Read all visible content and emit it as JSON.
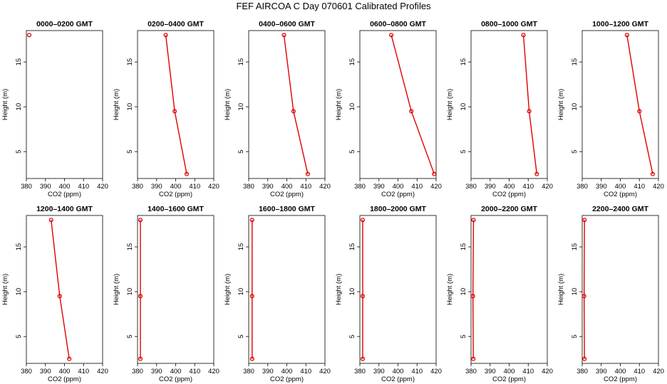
{
  "title": "FEF AIRCOA C  Day 070601  Calibrated Profiles",
  "colors": {
    "series": "#e00000",
    "axis": "#000000"
  },
  "chart_data": [
    {
      "type": "line",
      "title": "0000–0200 GMT",
      "xlabel": "CO2 (ppm)",
      "ylabel": "Height (m)",
      "xlim": [
        380,
        420
      ],
      "ylim": [
        2,
        18.5
      ],
      "xticks": [
        "380",
        "390",
        "400",
        "410",
        "420"
      ],
      "yticks": [
        "5",
        "10",
        "15"
      ],
      "x": [
        381.5
      ],
      "y": [
        18
      ]
    },
    {
      "type": "line",
      "title": "0200–0400 GMT",
      "xlabel": "CO2 (ppm)",
      "ylabel": "Height (m)",
      "xlim": [
        380,
        420
      ],
      "ylim": [
        2,
        18.5
      ],
      "xticks": [
        "380",
        "390",
        "400",
        "410",
        "420"
      ],
      "yticks": [
        "5",
        "10",
        "15"
      ],
      "x": [
        394.8,
        399.5,
        405.8
      ],
      "y": [
        18,
        9.5,
        2.5
      ]
    },
    {
      "type": "line",
      "title": "0400–0600 GMT",
      "xlabel": "CO2 (ppm)",
      "ylabel": "Height (m)",
      "xlim": [
        380,
        420
      ],
      "ylim": [
        2,
        18.5
      ],
      "xticks": [
        "380",
        "390",
        "400",
        "410",
        "420"
      ],
      "yticks": [
        "5",
        "10",
        "15"
      ],
      "x": [
        398.5,
        403.5,
        411
      ],
      "y": [
        18,
        9.5,
        2.5
      ]
    },
    {
      "type": "line",
      "title": "0600–0800 GMT",
      "xlabel": "CO2 (ppm)",
      "ylabel": "Height (m)",
      "xlim": [
        380,
        420
      ],
      "ylim": [
        2,
        18.5
      ],
      "xticks": [
        "380",
        "390",
        "400",
        "410",
        "420"
      ],
      "yticks": [
        "5",
        "10",
        "15"
      ],
      "x": [
        396.5,
        407,
        419
      ],
      "y": [
        18,
        9.5,
        2.5
      ]
    },
    {
      "type": "line",
      "title": "0800–1000 GMT",
      "xlabel": "CO2 (ppm)",
      "ylabel": "Height (m)",
      "xlim": [
        380,
        420
      ],
      "ylim": [
        2,
        18.5
      ],
      "xticks": [
        "380",
        "390",
        "400",
        "410",
        "420"
      ],
      "yticks": [
        "5",
        "10",
        "15"
      ],
      "x": [
        407.5,
        410.5,
        414.5
      ],
      "y": [
        18,
        9.5,
        2.5
      ]
    },
    {
      "type": "line",
      "title": "1000–1200 GMT",
      "xlabel": "CO2 (ppm)",
      "ylabel": "Height (m)",
      "xlim": [
        380,
        420
      ],
      "ylim": [
        2,
        18.5
      ],
      "xticks": [
        "380",
        "390",
        "400",
        "410",
        "420"
      ],
      "yticks": [
        "5",
        "10",
        "15"
      ],
      "x": [
        403.5,
        410,
        417
      ],
      "y": [
        18,
        9.5,
        2.5
      ]
    },
    {
      "type": "line",
      "title": "1200–1400 GMT",
      "xlabel": "CO2 (ppm)",
      "ylabel": "Height (m)",
      "xlim": [
        380,
        420
      ],
      "ylim": [
        2,
        18.5
      ],
      "xticks": [
        "380",
        "390",
        "400",
        "410",
        "420"
      ],
      "yticks": [
        "5",
        "10",
        "15"
      ],
      "x": [
        393,
        397.5,
        402.5
      ],
      "y": [
        18,
        9.5,
        2.5
      ]
    },
    {
      "type": "line",
      "title": "1400–1600 GMT",
      "xlabel": "CO2 (ppm)",
      "ylabel": "Height (m)",
      "xlim": [
        380,
        420
      ],
      "ylim": [
        2,
        18.5
      ],
      "xticks": [
        "380",
        "390",
        "400",
        "410",
        "420"
      ],
      "yticks": [
        "5",
        "10",
        "15"
      ],
      "x": [
        381.5,
        381.5,
        381.5
      ],
      "y": [
        18,
        9.5,
        2.5
      ]
    },
    {
      "type": "line",
      "title": "1600–1800 GMT",
      "xlabel": "CO2 (ppm)",
      "ylabel": "Height (m)",
      "xlim": [
        380,
        420
      ],
      "ylim": [
        2,
        18.5
      ],
      "xticks": [
        "380",
        "390",
        "400",
        "410",
        "420"
      ],
      "yticks": [
        "5",
        "10",
        "15"
      ],
      "x": [
        381.8,
        381.8,
        381.8
      ],
      "y": [
        18,
        9.5,
        2.5
      ]
    },
    {
      "type": "line",
      "title": "1800–2000 GMT",
      "xlabel": "CO2 (ppm)",
      "ylabel": "Height (m)",
      "xlim": [
        380,
        420
      ],
      "ylim": [
        2,
        18.5
      ],
      "xticks": [
        "380",
        "390",
        "400",
        "410",
        "420"
      ],
      "yticks": [
        "5",
        "10",
        "15"
      ],
      "x": [
        381.5,
        381.5,
        381.5
      ],
      "y": [
        18,
        9.5,
        2.5
      ]
    },
    {
      "type": "line",
      "title": "2000–2200 GMT",
      "xlabel": "CO2 (ppm)",
      "ylabel": "Height (m)",
      "xlim": [
        380,
        420
      ],
      "ylim": [
        2,
        18.5
      ],
      "xticks": [
        "380",
        "390",
        "400",
        "410",
        "420"
      ],
      "yticks": [
        "5",
        "10",
        "15"
      ],
      "x": [
        381.3,
        381,
        381.2
      ],
      "y": [
        18,
        9.5,
        2.5
      ]
    },
    {
      "type": "line",
      "title": "2200–2400 GMT",
      "xlabel": "CO2 (ppm)",
      "ylabel": "Height (m)",
      "xlim": [
        380,
        420
      ],
      "ylim": [
        2,
        18.5
      ],
      "xticks": [
        "380",
        "390",
        "400",
        "410",
        "420"
      ],
      "yticks": [
        "5",
        "10",
        "15"
      ],
      "x": [
        381.2,
        381,
        381.2
      ],
      "y": [
        18,
        9.5,
        2.5
      ]
    }
  ]
}
